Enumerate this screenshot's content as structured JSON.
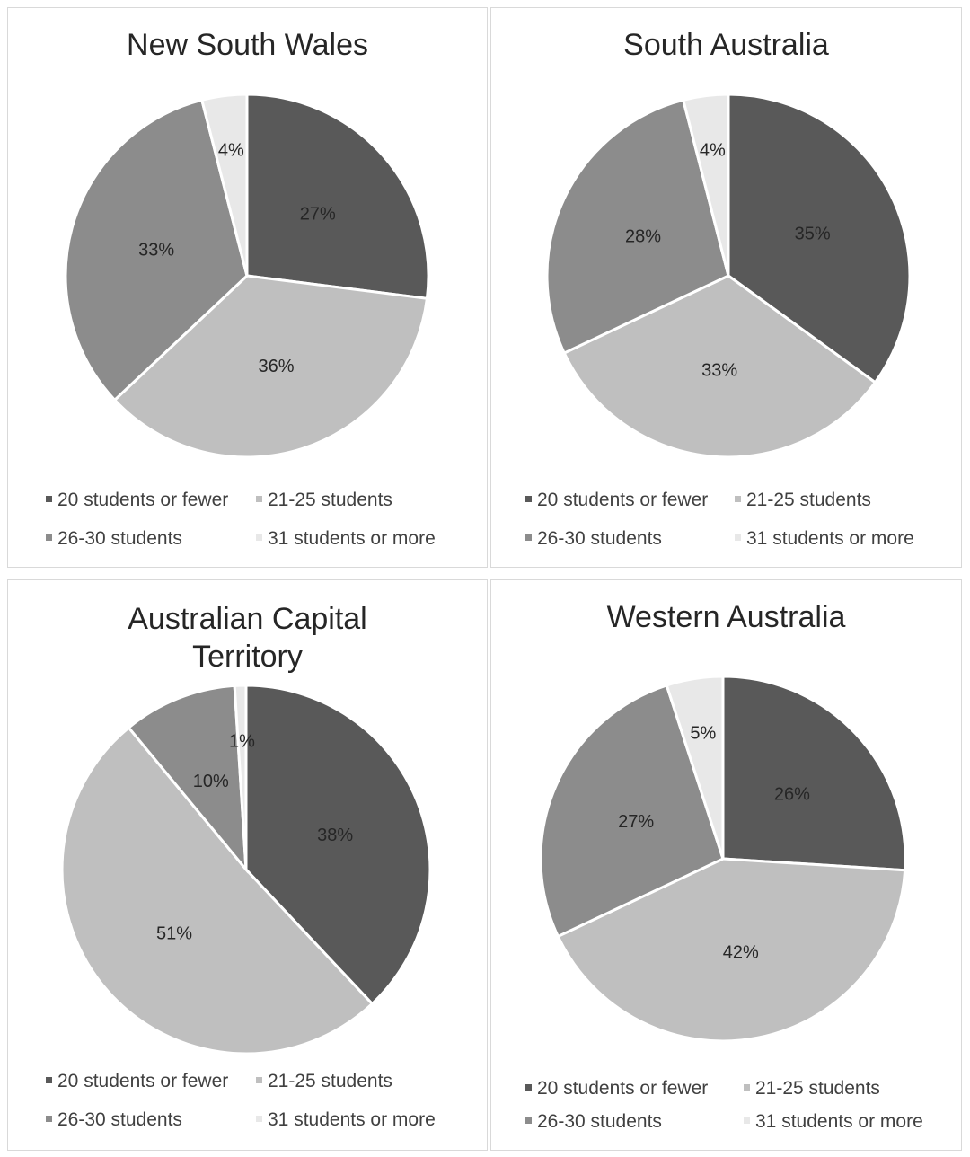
{
  "legend": [
    "20 students or fewer",
    "21-25 students",
    "26-30 students",
    "31 students or more"
  ],
  "colors": [
    "#595959",
    "#bfbfbf",
    "#8c8c8c",
    "#e8e8e8"
  ],
  "chart_data": [
    {
      "type": "pie",
      "title_lines": [
        "New South Wales"
      ],
      "categories": [
        "20 students or fewer",
        "21-25 students",
        "26-30 students",
        "31 students or more"
      ],
      "values": [
        27,
        36,
        33,
        4
      ],
      "labels": [
        "27%",
        "36%",
        "33%",
        "4%"
      ],
      "legend_position": "bottom"
    },
    {
      "type": "pie",
      "title_lines": [
        "South Australia"
      ],
      "categories": [
        "20 students or fewer",
        "21-25 students",
        "26-30 students",
        "31 students or more"
      ],
      "values": [
        35,
        33,
        28,
        4
      ],
      "labels": [
        "35%",
        "33%",
        "28%",
        "4%"
      ],
      "legend_position": "bottom"
    },
    {
      "type": "pie",
      "title_lines": [
        "Australian Capital",
        "Territory"
      ],
      "categories": [
        "20 students or fewer",
        "21-25 students",
        "26-30 students",
        "31 students or more"
      ],
      "values": [
        38,
        51,
        10,
        1
      ],
      "labels": [
        "38%",
        "51%",
        "10%",
        "1%"
      ],
      "legend_position": "bottom"
    },
    {
      "type": "pie",
      "title_lines": [
        "Western Australia"
      ],
      "categories": [
        "20 students or fewer",
        "21-25 students",
        "26-30 students",
        "31 students or more"
      ],
      "values": [
        26,
        42,
        27,
        5
      ],
      "labels": [
        "26%",
        "42%",
        "27%",
        "5%"
      ],
      "legend_position": "bottom"
    }
  ]
}
